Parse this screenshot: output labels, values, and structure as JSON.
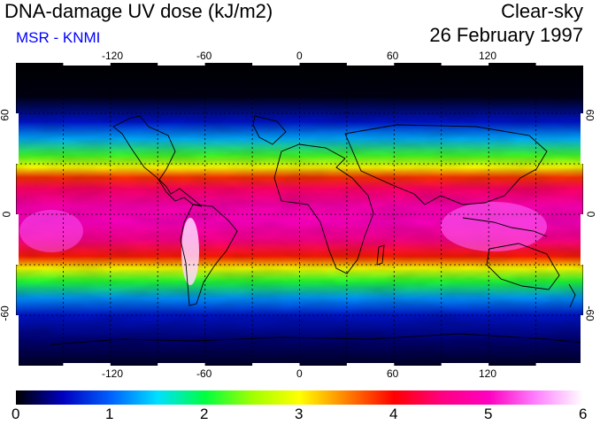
{
  "header": {
    "title": "DNA-damage UV dose (kJ/m2)",
    "credit": "MSR - KNMI",
    "condition": "Clear-sky",
    "date": "26 February 1997"
  },
  "map": {
    "projection": "equirectangular",
    "lon_range": [
      -180,
      180
    ],
    "lat_range": [
      -90,
      90
    ],
    "lon_ticks": [
      "-120",
      "-60",
      "0",
      "60",
      "120"
    ],
    "lat_ticks": [
      "60",
      "0",
      "-60"
    ],
    "grid": "dashed 30°",
    "field_profile": [
      {
        "lat": 90,
        "value": 0.0
      },
      {
        "lat": 70,
        "value": 0.05
      },
      {
        "lat": 55,
        "value": 0.6
      },
      {
        "lat": 45,
        "value": 1.3
      },
      {
        "lat": 35,
        "value": 2.2
      },
      {
        "lat": 28,
        "value": 3.0
      },
      {
        "lat": 22,
        "value": 3.8
      },
      {
        "lat": 15,
        "value": 4.4
      },
      {
        "lat": 5,
        "value": 4.9
      },
      {
        "lat": -5,
        "value": 5.0
      },
      {
        "lat": -15,
        "value": 4.6
      },
      {
        "lat": -25,
        "value": 3.9
      },
      {
        "lat": -32,
        "value": 3.0
      },
      {
        "lat": -40,
        "value": 2.1
      },
      {
        "lat": -50,
        "value": 1.2
      },
      {
        "lat": -60,
        "value": 0.6
      },
      {
        "lat": -75,
        "value": 0.3
      },
      {
        "lat": -90,
        "value": 0.1
      }
    ]
  },
  "colorbar": {
    "ticks": [
      "0",
      "1",
      "2",
      "3",
      "4",
      "5",
      "6"
    ],
    "min": 0,
    "max": 6,
    "colors": [
      "#000000",
      "#0000c0",
      "#0060ff",
      "#00e0ff",
      "#00ff40",
      "#a0ff00",
      "#ffff00",
      "#ff8000",
      "#ff0000",
      "#ff0080",
      "#ff00c0",
      "#ff80ff",
      "#ffffff"
    ]
  }
}
